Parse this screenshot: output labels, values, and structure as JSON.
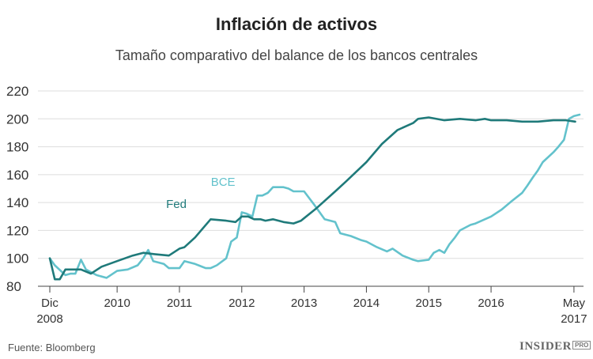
{
  "chart_data": {
    "type": "line",
    "title": "Inflación de activos",
    "subtitle": "Tamaño comparativo del balance de los bancos centrales",
    "xlabel": "",
    "ylabel": "",
    "ylim": [
      80,
      220
    ],
    "yticks": [
      "80",
      "100",
      "120",
      "140",
      "160",
      "180",
      "200",
      "220"
    ],
    "xticks": [
      {
        "t": 2008.92,
        "label": "Dic",
        "label2": "2008"
      },
      {
        "t": 2010.0,
        "label": "2010",
        "label2": ""
      },
      {
        "t": 2011.0,
        "label": "2011",
        "label2": ""
      },
      {
        "t": 2012.0,
        "label": "2012",
        "label2": ""
      },
      {
        "t": 2013.0,
        "label": "2013",
        "label2": ""
      },
      {
        "t": 2014.0,
        "label": "2014",
        "label2": ""
      },
      {
        "t": 2015.0,
        "label": "2015",
        "label2": ""
      },
      {
        "t": 2016.0,
        "label": "2016",
        "label2": ""
      },
      {
        "t": 2017.33,
        "label": "May",
        "label2": "2017"
      }
    ],
    "xlim": [
      2008.85,
      2017.45
    ],
    "grid": true,
    "series": [
      {
        "name": "Fed",
        "color": "#1f7a7a",
        "points": [
          [
            2008.92,
            100
          ],
          [
            2009.0,
            85
          ],
          [
            2009.08,
            85
          ],
          [
            2009.17,
            92
          ],
          [
            2009.33,
            92
          ],
          [
            2009.42,
            92
          ],
          [
            2009.58,
            89
          ],
          [
            2009.75,
            94
          ],
          [
            2010.0,
            98
          ],
          [
            2010.25,
            102
          ],
          [
            2010.42,
            104
          ],
          [
            2010.6,
            103
          ],
          [
            2010.83,
            102
          ],
          [
            2011.0,
            107
          ],
          [
            2011.08,
            108
          ],
          [
            2011.25,
            115
          ],
          [
            2011.5,
            128
          ],
          [
            2011.75,
            127
          ],
          [
            2011.9,
            126
          ],
          [
            2012.0,
            130
          ],
          [
            2012.1,
            130
          ],
          [
            2012.2,
            128
          ],
          [
            2012.3,
            128
          ],
          [
            2012.38,
            127
          ],
          [
            2012.5,
            128
          ],
          [
            2012.67,
            126
          ],
          [
            2012.83,
            125
          ],
          [
            2012.95,
            127
          ],
          [
            2013.2,
            136
          ],
          [
            2013.5,
            148
          ],
          [
            2013.67,
            155
          ],
          [
            2014.0,
            169
          ],
          [
            2014.25,
            182
          ],
          [
            2014.5,
            192
          ],
          [
            2014.75,
            197
          ],
          [
            2014.83,
            200
          ],
          [
            2015.0,
            201
          ],
          [
            2015.25,
            199
          ],
          [
            2015.5,
            200
          ],
          [
            2015.75,
            199
          ],
          [
            2015.9,
            200
          ],
          [
            2016.0,
            199
          ],
          [
            2016.25,
            199
          ],
          [
            2016.5,
            198
          ],
          [
            2016.75,
            198
          ],
          [
            2017.0,
            199
          ],
          [
            2017.2,
            199
          ],
          [
            2017.35,
            198
          ]
        ]
      },
      {
        "name": "BCE",
        "color": "#63c2cc",
        "points": [
          [
            2008.92,
            100
          ],
          [
            2009.0,
            95
          ],
          [
            2009.17,
            88
          ],
          [
            2009.25,
            89
          ],
          [
            2009.33,
            89
          ],
          [
            2009.42,
            99
          ],
          [
            2009.5,
            92
          ],
          [
            2009.67,
            88
          ],
          [
            2009.83,
            86
          ],
          [
            2010.0,
            91
          ],
          [
            2010.17,
            92
          ],
          [
            2010.33,
            95
          ],
          [
            2010.42,
            100
          ],
          [
            2010.5,
            106
          ],
          [
            2010.58,
            98
          ],
          [
            2010.75,
            96
          ],
          [
            2010.83,
            93
          ],
          [
            2011.0,
            93
          ],
          [
            2011.08,
            98
          ],
          [
            2011.25,
            96
          ],
          [
            2011.42,
            93
          ],
          [
            2011.5,
            93
          ],
          [
            2011.6,
            95
          ],
          [
            2011.75,
            100
          ],
          [
            2011.83,
            112
          ],
          [
            2011.92,
            115
          ],
          [
            2012.0,
            133
          ],
          [
            2012.08,
            132
          ],
          [
            2012.17,
            130
          ],
          [
            2012.25,
            145
          ],
          [
            2012.33,
            145
          ],
          [
            2012.42,
            147
          ],
          [
            2012.5,
            151
          ],
          [
            2012.67,
            151
          ],
          [
            2012.75,
            150
          ],
          [
            2012.83,
            148
          ],
          [
            2013.0,
            148
          ],
          [
            2013.17,
            138
          ],
          [
            2013.33,
            128
          ],
          [
            2013.5,
            126
          ],
          [
            2013.58,
            118
          ],
          [
            2013.75,
            116
          ],
          [
            2013.92,
            113
          ],
          [
            2014.0,
            112
          ],
          [
            2014.17,
            108
          ],
          [
            2014.33,
            105
          ],
          [
            2014.42,
            107
          ],
          [
            2014.58,
            102
          ],
          [
            2014.75,
            99
          ],
          [
            2014.83,
            98
          ],
          [
            2015.0,
            99
          ],
          [
            2015.08,
            104
          ],
          [
            2015.17,
            106
          ],
          [
            2015.25,
            104
          ],
          [
            2015.33,
            110
          ],
          [
            2015.42,
            115
          ],
          [
            2015.5,
            120
          ],
          [
            2015.67,
            124
          ],
          [
            2015.75,
            125
          ],
          [
            2016.0,
            130
          ],
          [
            2016.17,
            135
          ],
          [
            2016.33,
            141
          ],
          [
            2016.5,
            147
          ],
          [
            2016.58,
            152
          ],
          [
            2016.67,
            158
          ],
          [
            2016.75,
            163
          ],
          [
            2016.83,
            169
          ],
          [
            2017.0,
            176
          ],
          [
            2017.08,
            180
          ],
          [
            2017.17,
            185
          ],
          [
            2017.25,
            200
          ],
          [
            2017.33,
            202
          ],
          [
            2017.42,
            203
          ]
        ]
      }
    ],
    "annotations": [
      {
        "text": "Fed",
        "series": 0
      },
      {
        "text": "BCE",
        "series": 1
      }
    ]
  },
  "footer": {
    "source": "Fuente: Bloomberg",
    "brand": "INSIDER",
    "brand_suffix": "PRO"
  }
}
